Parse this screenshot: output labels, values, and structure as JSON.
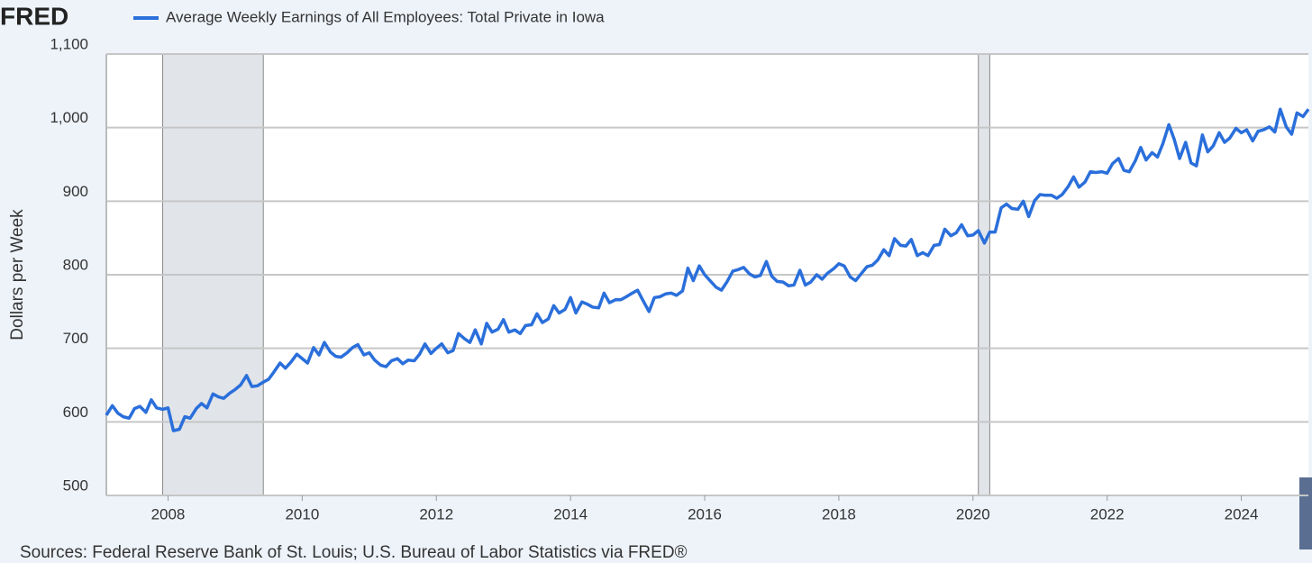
{
  "logo": "FRED",
  "chart_data": {
    "type": "line",
    "title": "Average Weekly Earnings of All Employees: Total Private in Iowa",
    "ylabel": "Dollars per Week",
    "source": "Sources: Federal Reserve Bank of St. Louis; U.S. Bureau of Labor Statistics via FRED®",
    "xlim": [
      2007.08,
      2025.0
    ],
    "xticks": [
      2008,
      2010,
      2012,
      2014,
      2016,
      2018,
      2020,
      2022,
      2024
    ],
    "ylim": [
      500,
      1100
    ],
    "yticks": [
      500,
      600,
      700,
      800,
      900,
      {
        "value": 1000,
        "label": "1,000"
      },
      {
        "value": 1100,
        "label": "1,100"
      }
    ],
    "grid": true,
    "recessions": [
      [
        2007.92,
        2009.42
      ],
      [
        2020.08,
        2020.25
      ]
    ],
    "x": [
      2007.08,
      2007.17,
      2007.25,
      2007.33,
      2007.42,
      2007.5,
      2007.58,
      2007.67,
      2007.75,
      2007.83,
      2007.92,
      2008,
      2008.08,
      2008.17,
      2008.25,
      2008.33,
      2008.42,
      2008.5,
      2008.58,
      2008.67,
      2008.75,
      2008.83,
      2008.92,
      2009,
      2009.08,
      2009.17,
      2009.25,
      2009.33,
      2009.42,
      2009.5,
      2009.58,
      2009.67,
      2009.75,
      2009.83,
      2009.92,
      2010,
      2010.08,
      2010.17,
      2010.25,
      2010.33,
      2010.42,
      2010.5,
      2010.58,
      2010.67,
      2010.75,
      2010.83,
      2010.92,
      2011,
      2011.08,
      2011.17,
      2011.25,
      2011.33,
      2011.42,
      2011.5,
      2011.58,
      2011.67,
      2011.75,
      2011.83,
      2011.92,
      2012,
      2012.08,
      2012.17,
      2012.25,
      2012.33,
      2012.42,
      2012.5,
      2012.58,
      2012.67,
      2012.75,
      2012.83,
      2012.92,
      2013,
      2013.08,
      2013.17,
      2013.25,
      2013.33,
      2013.42,
      2013.5,
      2013.58,
      2013.67,
      2013.75,
      2013.83,
      2013.92,
      2014,
      2014.08,
      2014.17,
      2014.25,
      2014.33,
      2014.42,
      2014.5,
      2014.58,
      2014.67,
      2014.75,
      2014.83,
      2014.92,
      2015,
      2015.08,
      2015.17,
      2015.25,
      2015.33,
      2015.42,
      2015.5,
      2015.58,
      2015.67,
      2015.75,
      2015.83,
      2015.92,
      2016,
      2016.08,
      2016.17,
      2016.25,
      2016.33,
      2016.42,
      2016.5,
      2016.58,
      2016.67,
      2016.75,
      2016.83,
      2016.92,
      2017,
      2017.08,
      2017.17,
      2017.25,
      2017.33,
      2017.42,
      2017.5,
      2017.58,
      2017.67,
      2017.75,
      2017.83,
      2017.92,
      2018,
      2018.08,
      2018.17,
      2018.25,
      2018.33,
      2018.42,
      2018.5,
      2018.58,
      2018.67,
      2018.75,
      2018.83,
      2018.92,
      2019,
      2019.08,
      2019.17,
      2019.25,
      2019.33,
      2019.42,
      2019.5,
      2019.58,
      2019.67,
      2019.75,
      2019.83,
      2019.92,
      2020,
      2020.08,
      2020.17,
      2020.25,
      2020.33,
      2020.42,
      2020.5,
      2020.58,
      2020.67,
      2020.75,
      2020.83,
      2020.92,
      2021,
      2021.08,
      2021.17,
      2021.25,
      2021.33,
      2021.42,
      2021.5,
      2021.58,
      2021.67,
      2021.75,
      2021.83,
      2021.92,
      2022,
      2022.08,
      2022.17,
      2022.25,
      2022.33,
      2022.42,
      2022.5,
      2022.58,
      2022.67,
      2022.75,
      2022.83,
      2022.92,
      2023,
      2023.08,
      2023.17,
      2023.25,
      2023.33,
      2023.42,
      2023.5,
      2023.58,
      2023.67,
      2023.75,
      2023.83,
      2023.92,
      2024,
      2024.08,
      2024.17,
      2024.25,
      2024.33,
      2024.42,
      2024.5,
      2024.58,
      2024.67,
      2024.75,
      2024.83,
      2024.92,
      2025.0
    ],
    "series": [
      {
        "name": "Average Weekly Earnings of All Employees: Total Private in Iowa",
        "color": "#2a6fdb",
        "values": [
          609,
          622,
          612,
          607,
          605,
          618,
          621,
          613,
          630,
          619,
          617,
          619,
          588,
          590,
          607,
          605,
          618,
          625,
          619,
          638,
          634,
          632,
          639,
          644,
          650,
          663,
          648,
          649,
          654,
          658,
          668,
          680,
          673,
          681,
          692,
          686,
          680,
          701,
          691,
          708,
          695,
          689,
          688,
          694,
          701,
          705,
          691,
          694,
          684,
          677,
          675,
          683,
          686,
          679,
          684,
          683,
          692,
          706,
          693,
          700,
          706,
          694,
          697,
          720,
          713,
          708,
          725,
          706,
          734,
          722,
          726,
          739,
          722,
          725,
          720,
          731,
          732,
          747,
          735,
          740,
          758,
          748,
          753,
          769,
          748,
          763,
          760,
          756,
          755,
          775,
          762,
          766,
          766,
          770,
          775,
          779,
          765,
          750,
          769,
          770,
          774,
          775,
          772,
          778,
          809,
          792,
          812,
          800,
          792,
          783,
          779,
          790,
          805,
          807,
          810,
          801,
          797,
          799,
          818,
          798,
          791,
          790,
          785,
          786,
          806,
          786,
          790,
          800,
          794,
          802,
          808,
          815,
          812,
          797,
          792,
          801,
          811,
          813,
          820,
          834,
          826,
          849,
          840,
          839,
          848,
          826,
          830,
          826,
          840,
          841,
          862,
          853,
          857,
          868,
          853,
          854,
          860,
          843,
          858,
          858,
          891,
          896,
          890,
          889,
          900,
          879,
          901,
          909,
          908,
          908,
          904,
          909,
          920,
          933,
          919,
          926,
          940,
          939,
          940,
          938,
          951,
          958,
          942,
          940,
          955,
          973,
          956,
          966,
          960,
          978,
          1004,
          984,
          958,
          980,
          952,
          948,
          990,
          967,
          975,
          993,
          980,
          986,
          999,
          993,
          997,
          982,
          995,
          997,
          1001,
          994,
          1025,
          1001,
          991,
          1020,
          1015,
          1025
        ]
      }
    ]
  }
}
